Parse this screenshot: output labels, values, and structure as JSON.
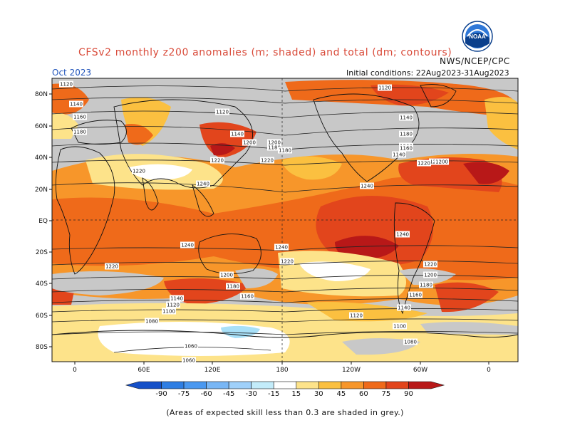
{
  "header": {
    "title": "CFSv2 monthly z200 anomalies (m; shaded) and total (dm; contours)",
    "agency": "NWS/NCEP/CPC",
    "month": "Oct 2023",
    "initial_conditions": "Initial conditions: 22Aug2023-31Aug2023",
    "logo_text": "NOAA"
  },
  "axes": {
    "lat_labels": [
      "80N",
      "60N",
      "40N",
      "20N",
      "EQ",
      "20S",
      "40S",
      "60S",
      "80S"
    ],
    "lon_labels": [
      "0",
      "60E",
      "120E",
      "180",
      "120W",
      "60W",
      "0"
    ]
  },
  "contour_labels": [
    "1120",
    "1140",
    "1160",
    "1180",
    "1200",
    "1220",
    "1240",
    "1120",
    "1140",
    "1180",
    "1200",
    "1220",
    "1240",
    "1140",
    "1160",
    "1180",
    "1200",
    "1220",
    "1240",
    "1120",
    "1140",
    "1160",
    "1180",
    "1200",
    "1220",
    "1240",
    "1220",
    "1200",
    "1180",
    "1160",
    "1140",
    "1120",
    "1100",
    "1080",
    "1060",
    "1240",
    "1220",
    "1200",
    "1180",
    "1160",
    "1140",
    "1120",
    "1100",
    "1080",
    "1060",
    "1220",
    "1240",
    "1240",
    "1240",
    "1220",
    "1200",
    "1180",
    "1160",
    "1140"
  ],
  "colorbar": {
    "values": [
      -90,
      -75,
      -60,
      -45,
      -30,
      -15,
      15,
      30,
      45,
      60,
      75,
      90
    ],
    "colors": [
      "#1550c8",
      "#2e7ee3",
      "#4a98f0",
      "#78b6f5",
      "#9fd0fa",
      "#c3ecfa",
      "#ffffff",
      "#fde38a",
      "#fbc040",
      "#f7962a",
      "#ef6a1a",
      "#e2451c",
      "#b81818"
    ]
  },
  "shading_colors": {
    "grey": "#c8c8c8",
    "white": "#ffffff",
    "yellow": "#fde38a",
    "light_orange": "#fbc040",
    "orange": "#f7962a",
    "dark_orange": "#ef6a1a",
    "red": "#e2451c",
    "dark_red": "#b81818",
    "light_blue": "#a8e0f8"
  },
  "footnote": "(Areas of expected skill less than 0.3 are shaded in grey.)"
}
